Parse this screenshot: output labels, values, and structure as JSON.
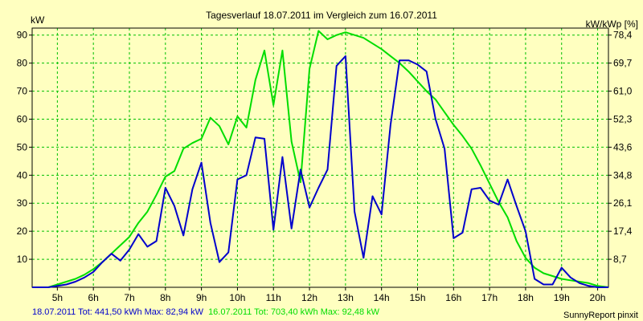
{
  "chart_data": {
    "type": "line",
    "title": "Tagesverlauf 18.07.2011 im Vergleich zum 16.07.2011",
    "ylabel_left": "kW",
    "ylabel_right": "kW/kWp [%]",
    "xlim": [
      4.3,
      20.3
    ],
    "ylim": [
      0,
      92.5
    ],
    "x_ticks": [
      {
        "v": 5,
        "label": "5h"
      },
      {
        "v": 6,
        "label": "6h"
      },
      {
        "v": 7,
        "label": "7h"
      },
      {
        "v": 8,
        "label": "8h"
      },
      {
        "v": 9,
        "label": "9h"
      },
      {
        "v": 10,
        "label": "10h"
      },
      {
        "v": 11,
        "label": "11h"
      },
      {
        "v": 12,
        "label": "12h"
      },
      {
        "v": 13,
        "label": "13h"
      },
      {
        "v": 14,
        "label": "14h"
      },
      {
        "v": 15,
        "label": "15h"
      },
      {
        "v": 16,
        "label": "16h"
      },
      {
        "v": 17,
        "label": "17h"
      },
      {
        "v": 18,
        "label": "18h"
      },
      {
        "v": 19,
        "label": "19h"
      },
      {
        "v": 20,
        "label": "20h"
      }
    ],
    "y_ticks_left": [
      10,
      20,
      30,
      40,
      50,
      60,
      70,
      80,
      90
    ],
    "y_ticks_right": [
      {
        "v": 10,
        "label": "8,7"
      },
      {
        "v": 20,
        "label": "17,4"
      },
      {
        "v": 30,
        "label": "26,1"
      },
      {
        "v": 40,
        "label": "34,8"
      },
      {
        "v": 50,
        "label": "43,6"
      },
      {
        "v": 60,
        "label": "52,3"
      },
      {
        "v": 70,
        "label": "61,0"
      },
      {
        "v": 80,
        "label": "69,7"
      },
      {
        "v": 90,
        "label": "78,4"
      }
    ],
    "grid": true,
    "series": [
      {
        "name": "18.07.2011",
        "color": "#0000cc",
        "footer": "18.07.2011 Tot: 441,50 kWh Max: 82,94 kW",
        "x": [
          4.3,
          4.75,
          5.0,
          5.25,
          5.5,
          5.75,
          6.0,
          6.25,
          6.5,
          6.75,
          7.0,
          7.25,
          7.5,
          7.75,
          8.0,
          8.25,
          8.5,
          8.75,
          9.0,
          9.25,
          9.5,
          9.75,
          10.0,
          10.25,
          10.5,
          10.75,
          11.0,
          11.25,
          11.5,
          11.75,
          12.0,
          12.25,
          12.5,
          12.75,
          13.0,
          13.25,
          13.5,
          13.75,
          14.0,
          14.25,
          14.5,
          14.75,
          15.0,
          15.25,
          15.5,
          15.75,
          16.0,
          16.25,
          16.5,
          16.75,
          17.0,
          17.25,
          17.5,
          17.75,
          18.0,
          18.25,
          18.5,
          18.75,
          19.0,
          19.25,
          19.5,
          19.75,
          20.0,
          20.3
        ],
        "y": [
          0,
          0,
          0.5,
          1,
          2,
          3.5,
          5.5,
          9,
          12,
          9.5,
          13.5,
          19,
          14.5,
          16.5,
          35.5,
          29,
          18.5,
          35,
          44.5,
          23,
          9,
          12.5,
          38.5,
          40,
          53.5,
          53,
          20.5,
          46.5,
          21,
          42,
          28.5,
          35.5,
          42,
          79,
          82.5,
          27,
          10.5,
          32.5,
          26,
          58,
          81,
          81,
          79.5,
          77,
          60,
          49.5,
          17.5,
          19.5,
          35,
          35.5,
          31,
          29.5,
          38.5,
          29,
          20,
          3,
          1,
          1,
          7,
          3.5,
          1.5,
          0.5,
          0,
          0
        ]
      },
      {
        "name": "16.07.2011",
        "color": "#00dd00",
        "footer": "16.07.2011 Tot: 703,40 kWh Max: 92,48 kW",
        "x": [
          4.3,
          4.75,
          5.0,
          5.25,
          5.5,
          5.75,
          6.0,
          6.25,
          6.5,
          6.75,
          7.0,
          7.25,
          7.5,
          7.75,
          8.0,
          8.25,
          8.5,
          8.75,
          9.0,
          9.25,
          9.5,
          9.75,
          10.0,
          10.25,
          10.5,
          10.75,
          11.0,
          11.25,
          11.5,
          11.75,
          12.0,
          12.25,
          12.5,
          12.75,
          13.0,
          13.25,
          13.5,
          13.75,
          14.0,
          14.25,
          14.5,
          14.75,
          15.0,
          15.25,
          15.5,
          15.75,
          16.0,
          16.25,
          16.5,
          16.75,
          17.0,
          17.25,
          17.5,
          17.75,
          18.0,
          18.25,
          18.5,
          18.75,
          19.0,
          19.25,
          19.5,
          19.75,
          20.0,
          20.3
        ],
        "y": [
          0,
          0,
          1,
          2,
          3,
          4.5,
          6.5,
          9,
          12,
          15,
          18,
          23,
          27,
          33,
          39.5,
          41.5,
          49.5,
          51.5,
          53,
          60.5,
          57.5,
          51,
          61,
          57,
          74,
          84.5,
          65,
          84.5,
          52,
          37.5,
          78,
          91.5,
          88.5,
          90,
          91,
          90,
          89,
          87,
          85,
          82.5,
          80,
          77,
          73.5,
          70,
          67,
          62.5,
          58,
          54,
          49.5,
          43.5,
          37,
          30.5,
          25,
          16.5,
          10.5,
          7,
          5,
          4,
          3,
          2.5,
          2,
          1.5,
          0.5,
          0
        ]
      }
    ],
    "credit": "SunnyReport pinxit"
  }
}
